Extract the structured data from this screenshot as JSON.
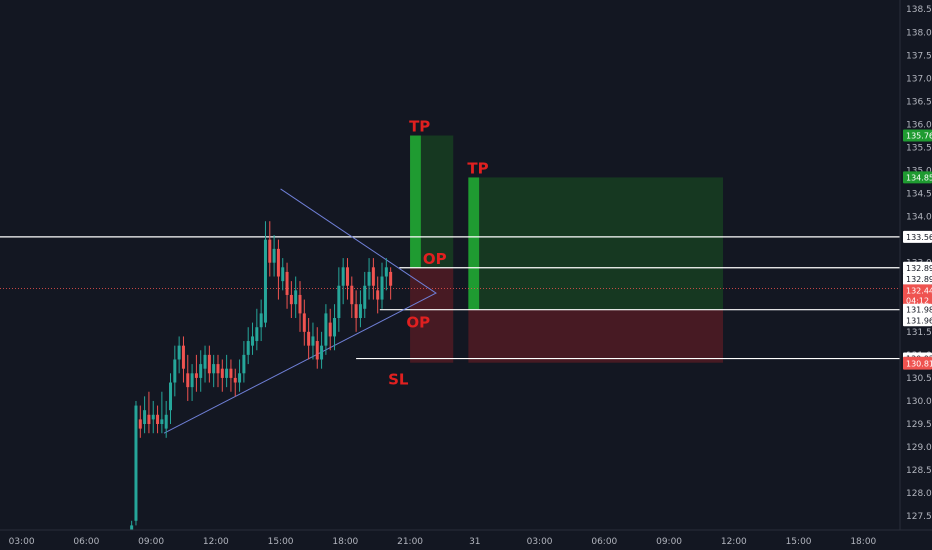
{
  "colors": {
    "background": "#131722",
    "up": "#26a69a",
    "down": "#ef5350",
    "profit_zone": "#163a22",
    "loss_zone": "#4a1a24",
    "profit_bar": "#1f9b31",
    "label_red": "#e02020",
    "triangle": "#6f7fd6",
    "level_line": "#ffffff",
    "axis_text": "#b2b5be"
  },
  "chart_data": {
    "type": "candlestick",
    "y_axis": {
      "min": 127.2,
      "max": 138.7,
      "ticks": [
        "127.50",
        "128.00",
        "128.50",
        "129.00",
        "129.50",
        "130.00",
        "130.50",
        "131.00",
        "131.50",
        "132.00",
        "132.50",
        "133.00",
        "133.50",
        "134.00",
        "134.50",
        "135.00",
        "135.50",
        "136.00",
        "136.50",
        "137.00",
        "137.50",
        "138.00",
        "138.50"
      ]
    },
    "x_axis": {
      "labels": [
        {
          "text": "03:00",
          "x": 1.0
        },
        {
          "text": "06:00",
          "x": 4.0
        },
        {
          "text": "09:00",
          "x": 7.0
        },
        {
          "text": "12:00",
          "x": 10.0
        },
        {
          "text": "15:00",
          "x": 13.0
        },
        {
          "text": "18:00",
          "x": 16.0
        },
        {
          "text": "21:00",
          "x": 19.0
        },
        {
          "text": "31",
          "x": 22.0
        },
        {
          "text": "03:00",
          "x": 25.0
        },
        {
          "text": "06:00",
          "x": 28.0
        },
        {
          "text": "09:00",
          "x": 31.0
        },
        {
          "text": "12:00",
          "x": 34.0
        },
        {
          "text": "15:00",
          "x": 37.0
        },
        {
          "text": "18:00",
          "x": 40.0
        }
      ],
      "range": [
        0.0,
        41.7
      ]
    },
    "candles": [
      [
        6.1,
        127.2,
        127.3,
        127.1,
        127.4
      ],
      [
        6.3,
        127.4,
        129.9,
        127.3,
        130.0
      ],
      [
        6.5,
        129.6,
        129.4,
        129.2,
        129.9
      ],
      [
        6.7,
        129.5,
        129.8,
        129.3,
        130.1
      ],
      [
        6.9,
        129.7,
        129.5,
        129.3,
        130.2
      ],
      [
        7.1,
        129.6,
        129.7,
        129.3,
        130.0
      ],
      [
        7.3,
        129.7,
        129.5,
        129.3,
        129.9
      ],
      [
        7.5,
        129.5,
        129.6,
        129.3,
        130.2
      ],
      [
        7.7,
        129.4,
        129.7,
        129.2,
        130.0
      ],
      [
        7.9,
        129.8,
        130.4,
        129.5,
        130.6
      ],
      [
        8.1,
        130.4,
        130.9,
        130.1,
        131.2
      ],
      [
        8.3,
        130.9,
        131.2,
        130.6,
        131.4
      ],
      [
        8.5,
        131.2,
        130.7,
        130.4,
        131.4
      ],
      [
        8.7,
        130.6,
        130.3,
        130.0,
        131.0
      ],
      [
        8.9,
        130.3,
        130.6,
        130.0,
        130.8
      ],
      [
        9.1,
        130.6,
        130.5,
        130.2,
        131.0
      ],
      [
        9.3,
        130.5,
        130.8,
        130.2,
        131.1
      ],
      [
        9.5,
        130.7,
        131.0,
        130.4,
        131.2
      ],
      [
        9.7,
        131.0,
        130.6,
        130.4,
        131.2
      ],
      [
        9.9,
        130.6,
        130.8,
        130.3,
        131.0
      ],
      [
        10.1,
        130.8,
        130.6,
        130.3,
        131.0
      ],
      [
        10.3,
        130.7,
        130.5,
        130.2,
        130.9
      ],
      [
        10.5,
        130.5,
        130.7,
        130.3,
        131.0
      ],
      [
        10.7,
        130.7,
        130.5,
        130.2,
        130.9
      ],
      [
        10.9,
        130.5,
        130.4,
        130.1,
        130.7
      ],
      [
        11.1,
        130.4,
        130.6,
        130.2,
        130.9
      ],
      [
        11.3,
        130.6,
        131.0,
        130.4,
        131.3
      ],
      [
        11.5,
        131.0,
        131.3,
        130.8,
        131.6
      ],
      [
        11.7,
        131.2,
        131.4,
        131.0,
        131.7
      ],
      [
        11.9,
        131.3,
        131.6,
        131.1,
        132.0
      ],
      [
        12.1,
        131.6,
        131.9,
        131.3,
        132.2
      ],
      [
        12.3,
        131.7,
        133.5,
        131.6,
        133.9
      ],
      [
        12.5,
        133.5,
        133.0,
        132.7,
        133.9
      ],
      [
        12.7,
        133.0,
        133.3,
        132.7,
        133.6
      ],
      [
        12.9,
        133.3,
        132.7,
        132.2,
        133.5
      ],
      [
        13.1,
        132.6,
        132.9,
        132.4,
        133.1
      ],
      [
        13.3,
        132.8,
        132.3,
        132.0,
        133.0
      ],
      [
        13.5,
        132.3,
        132.1,
        131.8,
        132.6
      ],
      [
        13.7,
        132.1,
        132.4,
        131.8,
        132.7
      ],
      [
        13.9,
        132.3,
        131.9,
        131.5,
        132.6
      ],
      [
        14.1,
        131.9,
        131.5,
        131.2,
        132.2
      ],
      [
        14.3,
        131.5,
        131.2,
        130.9,
        131.8
      ],
      [
        14.5,
        131.2,
        131.4,
        130.9,
        131.7
      ],
      [
        14.7,
        131.3,
        130.9,
        130.7,
        131.6
      ],
      [
        14.9,
        130.9,
        131.2,
        130.7,
        131.5
      ],
      [
        15.1,
        131.2,
        131.9,
        131.0,
        132.1
      ],
      [
        15.3,
        131.7,
        131.4,
        131.1,
        132.0
      ],
      [
        15.5,
        131.4,
        131.8,
        131.1,
        132.1
      ],
      [
        15.7,
        131.8,
        132.5,
        131.5,
        132.9
      ],
      [
        15.9,
        132.5,
        132.9,
        132.1,
        133.1
      ],
      [
        16.1,
        132.9,
        132.5,
        132.2,
        133.1
      ],
      [
        16.3,
        132.5,
        132.1,
        131.8,
        132.7
      ],
      [
        16.5,
        132.1,
        131.8,
        131.5,
        132.4
      ],
      [
        16.7,
        131.8,
        132.1,
        131.6,
        132.4
      ],
      [
        16.9,
        132.0,
        132.5,
        131.8,
        132.8
      ],
      [
        17.1,
        132.5,
        132.8,
        132.2,
        133.1
      ],
      [
        17.3,
        132.9,
        132.5,
        132.2,
        133.1
      ],
      [
        17.5,
        132.4,
        132.2,
        131.9,
        132.7
      ],
      [
        17.7,
        132.2,
        132.7,
        132.0,
        133.0
      ],
      [
        17.9,
        132.7,
        132.9,
        132.4,
        133.1
      ],
      [
        18.1,
        132.8,
        132.5,
        132.2,
        132.9
      ]
    ],
    "triangle": {
      "apex_x": 20.2,
      "apex_y": 132.34,
      "upper_x": 13.0,
      "upper_y": 134.6,
      "lower_x": 7.6,
      "lower_y": 129.3
    },
    "trades": [
      {
        "bar_x1": 19.0,
        "bar_x2": 19.5,
        "zone_x1": 19.0,
        "zone_x2": 21.0,
        "entry": 132.89,
        "target": 135.76,
        "stop": 130.83,
        "tp_label": "TP",
        "op_label": "OP",
        "sl_label": "SL"
      },
      {
        "bar_x1": 21.7,
        "bar_x2": 22.2,
        "zone_x1": 21.7,
        "zone_x2": 33.5,
        "entry": 131.98,
        "target": 134.85,
        "stop": 130.83,
        "tp_label": "TP",
        "op_label": "OP",
        "sl_label": "SL"
      }
    ],
    "levels": [
      {
        "price": 133.56,
        "x1": 0.0,
        "color": "#ffffff",
        "label": "133.56"
      },
      {
        "price": 132.89,
        "x1": 18.5,
        "color": "#ffffff",
        "label": "132.89"
      },
      {
        "price": 131.98,
        "x1": 17.6,
        "color": "#ffffff",
        "label": "131.98"
      },
      {
        "price": 130.92,
        "x1": 16.5,
        "color": "#ffffff",
        "label": "130.92"
      }
    ],
    "price_tags": [
      {
        "price": 135.76,
        "text": "135.76",
        "bg": "#1f9b31",
        "fg": "#ffffff"
      },
      {
        "price": 134.85,
        "text": "134.85",
        "bg": "#1f9b31",
        "fg": "#ffffff"
      },
      {
        "price": 133.56,
        "text": "133.56",
        "bg": "#ffffff",
        "fg": "#131722"
      },
      {
        "price": 132.89,
        "text": "132.89",
        "bg": "#ffffff",
        "fg": "#131722"
      },
      {
        "price": 132.65,
        "text": "132.89",
        "bg": "#ffffff",
        "fg": "#131722"
      },
      {
        "price": 132.4,
        "text": "132.44",
        "bg": "#ef5350",
        "fg": "#ffffff"
      },
      {
        "price": 132.18,
        "text": "04:12",
        "bg": "#ef5350",
        "fg": "#ffffff"
      },
      {
        "price": 131.98,
        "text": "131.98",
        "bg": "#ffffff",
        "fg": "#131722"
      },
      {
        "price": 131.75,
        "text": "131.96",
        "bg": "#ffffff",
        "fg": "#131722"
      },
      {
        "price": 130.92,
        "text": "130.92",
        "bg": "#ffffff",
        "fg": "#131722"
      },
      {
        "price": 130.83,
        "text": "130.83",
        "bg": "#ef5350",
        "fg": "#ffffff"
      },
      {
        "price": 130.81,
        "text": "130.81",
        "bg": "#ef5350",
        "fg": "#ffffff"
      }
    ],
    "current_price": 132.44
  }
}
